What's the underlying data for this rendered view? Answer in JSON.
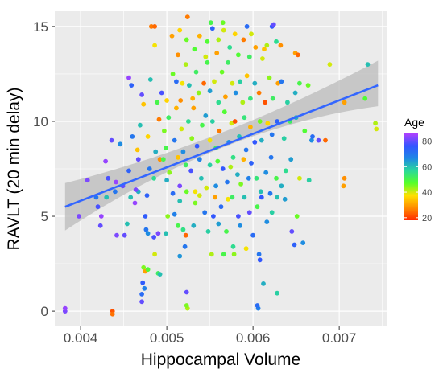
{
  "chart_data": {
    "type": "scatter",
    "xlabel": "Hippocampal Volume",
    "ylabel": "RAVLT (20 min delay)",
    "xlim": [
      0.0037,
      0.00755
    ],
    "ylim": [
      -0.8,
      15.8
    ],
    "x_ticks": [
      {
        "value": 0.004,
        "label": "0.004"
      },
      {
        "value": 0.005,
        "label": "0.005"
      },
      {
        "value": 0.006,
        "label": "0.006"
      },
      {
        "value": 0.007,
        "label": "0.007"
      }
    ],
    "y_ticks": [
      {
        "value": 0,
        "label": "0"
      },
      {
        "value": 5,
        "label": "5"
      },
      {
        "value": 10,
        "label": "10"
      },
      {
        "value": 15,
        "label": "15"
      }
    ],
    "grid": true,
    "background": "#ebebeb",
    "color_scale": {
      "title": "Age",
      "range": [
        18,
        86
      ],
      "ticks": [
        {
          "value": 20,
          "label": "20"
        },
        {
          "value": 40,
          "label": "40"
        },
        {
          "value": 60,
          "label": "60"
        },
        {
          "value": 80,
          "label": "80"
        }
      ],
      "stops": [
        "#ff2a00",
        "#ff8c00",
        "#ffe100",
        "#55ff2a",
        "#2ad99a",
        "#1e88e5",
        "#3355ff",
        "#b040ff"
      ],
      "legend_placement": "right"
    },
    "regression": {
      "x_start": 0.00382,
      "x_end": 0.00745,
      "y_start": 5.5,
      "y_end": 11.9,
      "ci_band": {
        "at_x_start": [
          4.25,
          6.75
        ],
        "at_x_mid": [
          8.6,
          9.4
        ],
        "at_x_end": [
          10.8,
          13.2
        ]
      },
      "line_color": "#3366ff",
      "band_color": "#bbbbbb"
    },
    "points": [
      [
        0.00382,
        0,
        82
      ],
      [
        0.00382,
        0.15,
        84
      ],
      [
        0.00437,
        0,
        22
      ],
      [
        0.00437,
        -0.15,
        25
      ],
      [
        0.00471,
        0.9,
        72
      ],
      [
        0.00471,
        0.5,
        80
      ],
      [
        0.00474,
        1.2,
        68
      ],
      [
        0.00472,
        1.5,
        75
      ],
      [
        0.00473,
        2.3,
        45
      ],
      [
        0.00475,
        2.1,
        30
      ],
      [
        0.00478,
        2.2,
        48
      ],
      [
        0.0049,
        2.0,
        52
      ],
      [
        0.00492,
        1.95,
        60
      ],
      [
        0.00486,
        3.0,
        40
      ],
      [
        0.00524,
        0.15,
        42
      ],
      [
        0.00523,
        0.3,
        45
      ],
      [
        0.00523,
        1.0,
        80
      ],
      [
        0.00606,
        0.15,
        68
      ],
      [
        0.00605,
        0.3,
        72
      ],
      [
        0.00628,
        0.95,
        58
      ],
      [
        0.00612,
        1.45,
        62
      ],
      [
        0.00515,
        2.9,
        65
      ],
      [
        0.00521,
        3.4,
        70
      ],
      [
        0.00552,
        3.0,
        42
      ],
      [
        0.00566,
        3.0,
        50
      ],
      [
        0.00577,
        3.4,
        56
      ],
      [
        0.00578,
        3.0,
        44
      ],
      [
        0.00592,
        3.3,
        38
      ],
      [
        0.00607,
        3.0,
        70
      ],
      [
        0.00608,
        2.7,
        76
      ],
      [
        0.00648,
        3.5,
        74
      ],
      [
        0.00645,
        4.2,
        80
      ],
      [
        0.00658,
        3.6,
        66
      ],
      [
        0.00398,
        5.0,
        82
      ],
      [
        0.0042,
        5.5,
        78
      ],
      [
        0.00424,
        5.0,
        84
      ],
      [
        0.00423,
        4.5,
        80
      ],
      [
        0.0043,
        6.0,
        60
      ],
      [
        0.0044,
        6.3,
        70
      ],
      [
        0.00442,
        4.0,
        82
      ],
      [
        0.00451,
        4.0,
        80
      ],
      [
        0.00454,
        4.6,
        60
      ],
      [
        0.00463,
        5.7,
        84
      ],
      [
        0.00467,
        6.3,
        62
      ],
      [
        0.00475,
        5.0,
        75
      ],
      [
        0.00476,
        4.3,
        70
      ],
      [
        0.00478,
        4.1,
        66
      ],
      [
        0.00485,
        3.9,
        78
      ],
      [
        0.0049,
        4.1,
        82
      ],
      [
        0.00499,
        4.1,
        60
      ],
      [
        0.00501,
        5.0,
        44
      ],
      [
        0.00509,
        5.1,
        68
      ],
      [
        0.00513,
        4.5,
        50
      ],
      [
        0.00515,
        5.8,
        60
      ],
      [
        0.00519,
        4.3,
        55
      ],
      [
        0.00522,
        4.0,
        24
      ],
      [
        0.00531,
        4.5,
        62
      ],
      [
        0.00533,
        5.7,
        45
      ],
      [
        0.00538,
        6.1,
        40
      ],
      [
        0.00544,
        5.2,
        70
      ],
      [
        0.00548,
        4.2,
        58
      ],
      [
        0.00554,
        5.0,
        76
      ],
      [
        0.00556,
        6.0,
        30
      ],
      [
        0.0056,
        4.6,
        64
      ],
      [
        0.00563,
        5.5,
        72
      ],
      [
        0.00569,
        4.2,
        50
      ],
      [
        0.00571,
        5.9,
        38
      ],
      [
        0.00576,
        6.0,
        52
      ],
      [
        0.00583,
        5.0,
        78
      ],
      [
        0.00585,
        4.5,
        66
      ],
      [
        0.0059,
        6.0,
        60
      ],
      [
        0.00596,
        5.2,
        80
      ],
      [
        0.006,
        4.0,
        72
      ],
      [
        0.00605,
        5.5,
        50
      ],
      [
        0.0061,
        6.0,
        76
      ],
      [
        0.00616,
        4.7,
        66
      ],
      [
        0.0062,
        6.2,
        70
      ],
      [
        0.00622,
        5.2,
        58
      ],
      [
        0.00628,
        6.0,
        60
      ],
      [
        0.00637,
        5.9,
        64
      ],
      [
        0.00651,
        5.0,
        46
      ],
      [
        0.00408,
        6.9,
        82
      ],
      [
        0.00418,
        6.0,
        70
      ],
      [
        0.00432,
        7.0,
        78
      ],
      [
        0.00441,
        6.8,
        84
      ],
      [
        0.00449,
        6.6,
        80
      ],
      [
        0.00456,
        7.4,
        74
      ],
      [
        0.00458,
        6.0,
        60
      ],
      [
        0.00464,
        6.4,
        82
      ],
      [
        0.00467,
        8.0,
        80
      ],
      [
        0.00477,
        6.1,
        74
      ],
      [
        0.0048,
        7.5,
        70
      ],
      [
        0.00485,
        7.0,
        56
      ],
      [
        0.00492,
        8.0,
        28
      ],
      [
        0.00496,
        8.0,
        50
      ],
      [
        0.005,
        6.9,
        62
      ],
      [
        0.00503,
        7.3,
        44
      ],
      [
        0.00507,
        6.2,
        72
      ],
      [
        0.00513,
        8.1,
        34
      ],
      [
        0.00515,
        6.6,
        82
      ],
      [
        0.00522,
        7.7,
        52
      ],
      [
        0.00523,
        6.3,
        46
      ],
      [
        0.00528,
        7.4,
        78
      ],
      [
        0.00533,
        6.3,
        38
      ],
      [
        0.00538,
        8.0,
        68
      ],
      [
        0.0054,
        7.0,
        60
      ],
      [
        0.00546,
        6.5,
        40
      ],
      [
        0.0055,
        7.7,
        58
      ],
      [
        0.00557,
        6.6,
        66
      ],
      [
        0.00559,
        7.9,
        48
      ],
      [
        0.00565,
        7.5,
        76
      ],
      [
        0.0057,
        6.8,
        70
      ],
      [
        0.00574,
        7.6,
        42
      ],
      [
        0.00577,
        8.1,
        55
      ],
      [
        0.00582,
        7.2,
        62
      ],
      [
        0.00586,
        6.7,
        45
      ],
      [
        0.00589,
        8.0,
        32
      ],
      [
        0.00595,
        7.0,
        68
      ],
      [
        0.00598,
        7.8,
        74
      ],
      [
        0.00604,
        7.0,
        54
      ],
      [
        0.00609,
        6.3,
        60
      ],
      [
        0.00615,
        7.3,
        66
      ],
      [
        0.00621,
        8.1,
        70
      ],
      [
        0.00627,
        7.0,
        50
      ],
      [
        0.00633,
        6.6,
        62
      ],
      [
        0.00638,
        7.4,
        56
      ],
      [
        0.00644,
        8.0,
        64
      ],
      [
        0.00654,
        7.0,
        40
      ],
      [
        0.00665,
        6.9,
        58
      ],
      [
        0.00706,
        7.0,
        28
      ],
      [
        0.00705,
        6.6,
        30
      ],
      [
        0.00429,
        7.9,
        84
      ],
      [
        0.00436,
        9.0,
        80
      ],
      [
        0.00446,
        8.8,
        66
      ],
      [
        0.0046,
        9.2,
        70
      ],
      [
        0.00466,
        8.5,
        34
      ],
      [
        0.00469,
        9.8,
        60
      ],
      [
        0.00478,
        9.2,
        36
      ],
      [
        0.00487,
        8.4,
        62
      ],
      [
        0.00491,
        10.1,
        26
      ],
      [
        0.00497,
        9.5,
        45
      ],
      [
        0.00499,
        8.6,
        50
      ],
      [
        0.00502,
        10.2,
        52
      ],
      [
        0.00509,
        9.0,
        70
      ],
      [
        0.00511,
        10.7,
        32
      ],
      [
        0.00517,
        9.6,
        40
      ],
      [
        0.00519,
        8.4,
        66
      ],
      [
        0.00525,
        10.0,
        56
      ],
      [
        0.00529,
        9.1,
        44
      ],
      [
        0.00531,
        10.7,
        30
      ],
      [
        0.00535,
        8.7,
        76
      ],
      [
        0.00541,
        9.8,
        50
      ],
      [
        0.00545,
        10.3,
        64
      ],
      [
        0.0055,
        9.0,
        38
      ],
      [
        0.00553,
        10.0,
        58
      ],
      [
        0.00557,
        8.6,
        52
      ],
      [
        0.00561,
        9.5,
        26
      ],
      [
        0.00567,
        10.5,
        48
      ],
      [
        0.00572,
        8.9,
        66
      ],
      [
        0.00575,
        9.9,
        40
      ],
      [
        0.00579,
        10.0,
        22
      ],
      [
        0.00584,
        9.2,
        60
      ],
      [
        0.0059,
        10.2,
        54
      ],
      [
        0.00592,
        8.5,
        70
      ],
      [
        0.00597,
        9.7,
        32
      ],
      [
        0.00602,
        8.9,
        76
      ],
      [
        0.00608,
        10.0,
        46
      ],
      [
        0.0061,
        9.0,
        62
      ],
      [
        0.00617,
        9.9,
        36
      ],
      [
        0.00622,
        9.3,
        70
      ],
      [
        0.00628,
        10.0,
        74
      ],
      [
        0.00636,
        9.1,
        58
      ],
      [
        0.00643,
        10.0,
        52
      ],
      [
        0.0065,
        10.2,
        62
      ],
      [
        0.0066,
        9.5,
        48
      ],
      [
        0.00668,
        9.0,
        66
      ],
      [
        0.00669,
        9.2,
        72
      ],
      [
        0.00676,
        9.0,
        80
      ],
      [
        0.00684,
        9.0,
        24
      ],
      [
        0.00742,
        9.9,
        42
      ],
      [
        0.00743,
        9.6,
        40
      ],
      [
        0.0073,
        11.2,
        48
      ],
      [
        0.00456,
        12.3,
        84
      ],
      [
        0.00459,
        11.9,
        74
      ],
      [
        0.00471,
        11.4,
        80
      ],
      [
        0.00473,
        10.9,
        34
      ],
      [
        0.00481,
        12.2,
        60
      ],
      [
        0.00489,
        11.0,
        50
      ],
      [
        0.00494,
        11.5,
        78
      ],
      [
        0.005,
        11.1,
        36
      ],
      [
        0.00507,
        12.5,
        46
      ],
      [
        0.00511,
        12.1,
        72
      ],
      [
        0.00516,
        11.1,
        28
      ],
      [
        0.00518,
        12.0,
        38
      ],
      [
        0.00522,
        13.0,
        42
      ],
      [
        0.00526,
        11.9,
        60
      ],
      [
        0.0053,
        11.2,
        32
      ],
      [
        0.00534,
        12.6,
        52
      ],
      [
        0.00537,
        11.5,
        44
      ],
      [
        0.00543,
        12.0,
        24
      ],
      [
        0.00547,
        13.1,
        50
      ],
      [
        0.0055,
        11.6,
        64
      ],
      [
        0.00555,
        12.1,
        40
      ],
      [
        0.0056,
        11.0,
        56
      ],
      [
        0.00564,
        12.6,
        46
      ],
      [
        0.00568,
        11.3,
        30
      ],
      [
        0.00571,
        13.1,
        52
      ],
      [
        0.00576,
        12.0,
        40
      ],
      [
        0.0058,
        11.5,
        66
      ],
      [
        0.00585,
        12.1,
        58
      ],
      [
        0.00588,
        11.0,
        42
      ],
      [
        0.00593,
        12.4,
        34
      ],
      [
        0.00597,
        11.2,
        54
      ],
      [
        0.00602,
        12.0,
        62
      ],
      [
        0.00607,
        11.5,
        26
      ],
      [
        0.00611,
        13.3,
        40
      ],
      [
        0.00614,
        11.0,
        22
      ],
      [
        0.00619,
        12.3,
        44
      ],
      [
        0.00623,
        11.2,
        52
      ],
      [
        0.00629,
        12.0,
        30
      ],
      [
        0.00633,
        12.1,
        70
      ],
      [
        0.0064,
        11.0,
        58
      ],
      [
        0.00649,
        11.5,
        62
      ],
      [
        0.00654,
        12.0,
        50
      ],
      [
        0.00664,
        11.9,
        46
      ],
      [
        0.00689,
        13.0,
        40
      ],
      [
        0.00706,
        11.0,
        30
      ],
      [
        0.00733,
        13.0,
        60
      ],
      [
        0.00482,
        15.0,
        26
      ],
      [
        0.00486,
        15.0,
        24
      ],
      [
        0.00486,
        14.0,
        38
      ],
      [
        0.00506,
        14.5,
        30
      ],
      [
        0.00513,
        13.5,
        28
      ],
      [
        0.00515,
        14.8,
        36
      ],
      [
        0.00523,
        14.3,
        46
      ],
      [
        0.00524,
        15.5,
        26
      ],
      [
        0.00532,
        13.8,
        48
      ],
      [
        0.00538,
        14.5,
        32
      ],
      [
        0.00545,
        13.4,
        40
      ],
      [
        0.00547,
        14.2,
        48
      ],
      [
        0.00551,
        15.2,
        50
      ],
      [
        0.00553,
        14.9,
        74
      ],
      [
        0.00558,
        13.6,
        30
      ],
      [
        0.0056,
        14.3,
        42
      ],
      [
        0.00565,
        15.2,
        46
      ],
      [
        0.00566,
        14.8,
        40
      ],
      [
        0.00573,
        13.9,
        56
      ],
      [
        0.00579,
        14.6,
        36
      ],
      [
        0.00583,
        13.5,
        48
      ],
      [
        0.00589,
        14.3,
        26
      ],
      [
        0.00593,
        15.0,
        72
      ],
      [
        0.00596,
        13.4,
        52
      ],
      [
        0.00598,
        14.6,
        40
      ],
      [
        0.00603,
        13.9,
        30
      ],
      [
        0.00613,
        13.8,
        34
      ],
      [
        0.00616,
        14.0,
        42
      ],
      [
        0.00622,
        15.0,
        76
      ],
      [
        0.00624,
        15.1,
        80
      ],
      [
        0.00627,
        14.2,
        56
      ],
      [
        0.00632,
        14.0,
        28
      ],
      [
        0.00649,
        13.6,
        30
      ],
      [
        0.00652,
        13.5,
        24
      ]
    ]
  }
}
